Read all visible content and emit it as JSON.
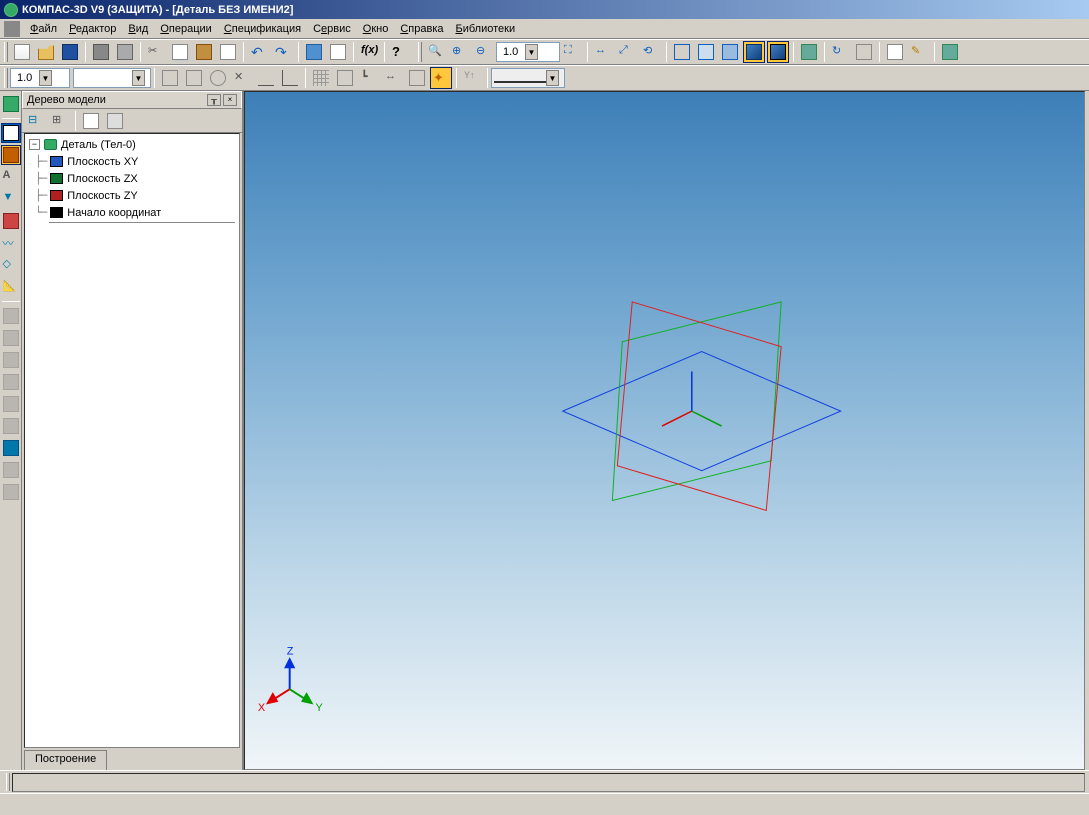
{
  "app": {
    "title": "КОМПАС-3D V9 (ЗАЩИТА) - [Деталь БЕЗ ИМЕНИ2]"
  },
  "menu": {
    "items": [
      "Файл",
      "Редактор",
      "Вид",
      "Операции",
      "Спецификация",
      "Сервис",
      "Окно",
      "Справка",
      "Библиотеки"
    ],
    "hotkeys": [
      "Ф",
      "Р",
      "В",
      "О",
      "С",
      "е",
      "О",
      "С",
      "Б"
    ]
  },
  "toolbar1": {
    "combo_scale": "1.0"
  },
  "toolbar2": {
    "combo_style": "1.0",
    "combo_layer": ""
  },
  "tree": {
    "panel_title": "Дерево модели",
    "root": "Деталь (Тел-0)",
    "nodes": [
      {
        "label": "Плоскость XY",
        "color": "#2058c0"
      },
      {
        "label": "Плоскость ZX",
        "color": "#107030"
      },
      {
        "label": "Плоскость ZY",
        "color": "#b02020"
      },
      {
        "label": "Начало координат",
        "color": "#000000"
      }
    ],
    "tab": "Построение"
  },
  "viewport": {
    "bg_top": "#3d7fb8",
    "bg_bottom": "#f0f5f8",
    "plane_xy_color": "#1040e0",
    "plane_zx_color": "#10b020",
    "plane_zy_color": "#e02020",
    "axis_x_color": "#e00000",
    "axis_y_color": "#00a000",
    "axis_z_color": "#0030e0",
    "triad": {
      "x_label": "X",
      "y_label": "Y",
      "z_label": "Z"
    }
  }
}
